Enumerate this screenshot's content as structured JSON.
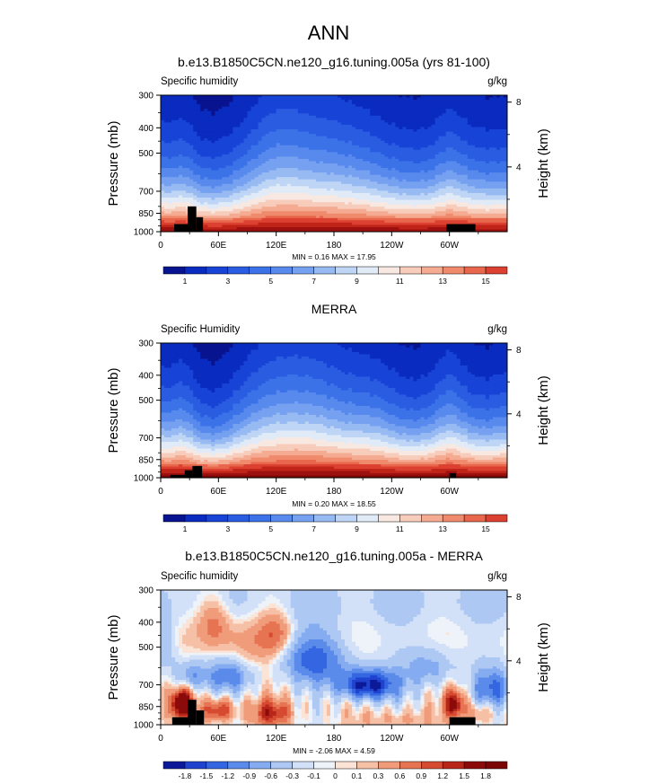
{
  "figure_title": "ANN",
  "palettes": {
    "full": [
      "#08138f",
      "#0a2bbf",
      "#1744d6",
      "#2a5ce2",
      "#3b72e8",
      "#5889ec",
      "#76a1f0",
      "#98baf3",
      "#bfd5f6",
      "#e1ebf7",
      "#f8e8e2",
      "#f8ccbb",
      "#f5ab92",
      "#f08a6c",
      "#e8664b",
      "#db4030",
      "#c02419",
      "#9c1010",
      "#7b0606"
    ],
    "diff": [
      "#0c1a9a",
      "#1f43cf",
      "#3366e0",
      "#5a8aea",
      "#85abf0",
      "#aec8f4",
      "#d2e1f7",
      "#eef3fa",
      "#fbe3d6",
      "#f6c0a6",
      "#f09b7a",
      "#e67352",
      "#d64a31",
      "#b8261a",
      "#8b0a0a"
    ]
  },
  "charts": [
    {
      "title": "b.e13.B1850C5CN.ne120_g16.tuning.005a (yrs 81-100)",
      "left_label": "Specific humidity",
      "right_label": "g/kg",
      "ylabel": "Pressure (mb)",
      "y2label": "Height (km)",
      "minmax": "MIN =  0.16  MAX =  17.95",
      "colorbar_labels": [
        "1",
        "3",
        "5",
        "7",
        "9",
        "11",
        "13",
        "15"
      ]
    },
    {
      "title": "MERRA",
      "left_label": "Specific Humidity",
      "right_label": "g/kg",
      "ylabel": "Pressure (mb)",
      "y2label": "Height (km)",
      "minmax": "MIN =  0.20  MAX =  18.55",
      "colorbar_labels": [
        "1",
        "3",
        "5",
        "7",
        "9",
        "11",
        "13",
        "15"
      ]
    },
    {
      "title": "b.e13.B1850C5CN.ne120_g16.tuning.005a - MERRA",
      "left_label": "Specific humidity",
      "right_label": "g/kg",
      "ylabel": "Pressure (mb)",
      "y2label": "Height (km)",
      "minmax": "MIN = -2.06  MAX =  4.59",
      "colorbar_labels": [
        "-1.8",
        "-1.5",
        "-1.2",
        "-0.9",
        "-0.6",
        "-0.3",
        "-0.1",
        "0",
        "0.1",
        "0.3",
        "0.6",
        "0.9",
        "1.2",
        "1.5",
        "1.8"
      ]
    }
  ],
  "chart_data": [
    {
      "type": "heatmap",
      "title": "b.e13.B1850C5CN.ne120_g16.tuning.005a (yrs 81-100)",
      "xlabel": "",
      "ylabel": "Pressure (mb)",
      "y2label": "Height (km)",
      "xlim": [
        0,
        360
      ],
      "ylim": [
        1000,
        300
      ],
      "x_ticks": [
        "0",
        "60E",
        "120E",
        "180",
        "120W",
        "60W"
      ],
      "y_ticks": [
        300,
        400,
        500,
        700,
        850,
        1000
      ],
      "y2_ticks": [
        "8",
        "4"
      ],
      "units": "g/kg",
      "min": 0.16,
      "max": 17.95,
      "contour_levels": [
        1,
        2,
        3,
        4,
        5,
        6,
        7,
        8,
        9,
        10,
        11,
        12,
        13,
        14,
        15,
        16,
        17,
        18
      ],
      "terrain_boxes_lon_ranges": [
        [
          14,
          44
        ],
        [
          297,
          327
        ]
      ]
    },
    {
      "type": "heatmap",
      "title": "MERRA",
      "xlabel": "",
      "ylabel": "Pressure (mb)",
      "y2label": "Height (km)",
      "xlim": [
        0,
        360
      ],
      "ylim": [
        1000,
        300
      ],
      "x_ticks": [
        "0",
        "60E",
        "120E",
        "180",
        "120W",
        "60W"
      ],
      "y_ticks": [
        300,
        400,
        500,
        700,
        850,
        1000
      ],
      "y2_ticks": [
        "8",
        "4"
      ],
      "units": "g/kg",
      "min": 0.2,
      "max": 18.55,
      "contour_levels": [
        1,
        2,
        3,
        4,
        5,
        6,
        7,
        8,
        9,
        10,
        11,
        12,
        13,
        14,
        15,
        16,
        17,
        18
      ],
      "terrain_boxes_lon_ranges": [
        [
          10,
          43
        ],
        [
          300,
          307
        ]
      ]
    },
    {
      "type": "heatmap",
      "title": "b.e13.B1850C5CN.ne120_g16.tuning.005a - MERRA",
      "xlabel": "",
      "ylabel": "Pressure (mb)",
      "y2label": "Height (km)",
      "xlim": [
        0,
        360
      ],
      "ylim": [
        1000,
        300
      ],
      "x_ticks": [
        "0",
        "60E",
        "120E",
        "180",
        "120W",
        "60W"
      ],
      "y_ticks": [
        300,
        400,
        500,
        700,
        850,
        1000
      ],
      "y2_ticks": [
        "8",
        "4"
      ],
      "units": "g/kg",
      "min": -2.06,
      "max": 4.59,
      "contour_levels": [
        -1.8,
        -1.5,
        -1.2,
        -0.9,
        -0.6,
        -0.3,
        -0.1,
        0,
        0.1,
        0.3,
        0.6,
        0.9,
        1.2,
        1.5,
        1.8
      ],
      "terrain_boxes_lon_ranges": [
        [
          12,
          45
        ],
        [
          300,
          327
        ]
      ]
    }
  ]
}
